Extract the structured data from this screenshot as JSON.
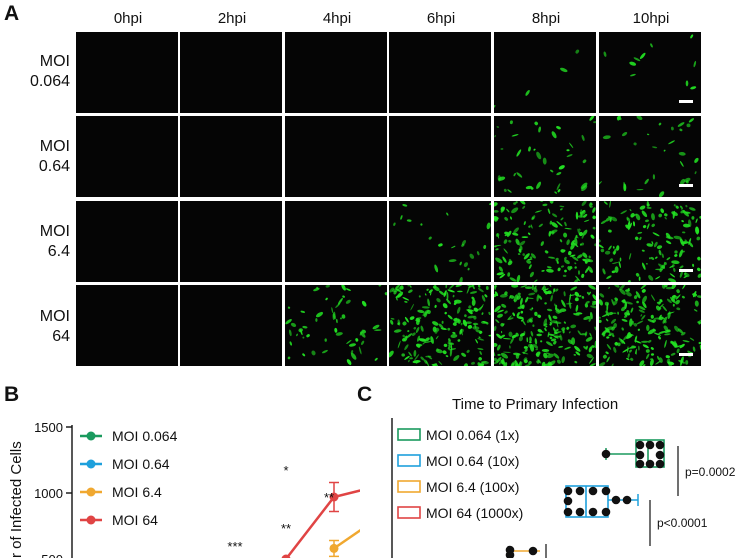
{
  "panelA": {
    "letter": "A",
    "columns": [
      "0hpi",
      "2hpi",
      "4hpi",
      "6hpi",
      "8hpi",
      "10hpi"
    ],
    "rows": [
      {
        "line1": "MOI",
        "line2": "0.064"
      },
      {
        "line1": "MOI",
        "line2": "0.64"
      },
      {
        "line1": "MOI",
        "line2": "6.4"
      },
      {
        "line1": "MOI",
        "line2": "64"
      }
    ],
    "fluorescence_color": "#22e022",
    "background_color": "#050505"
  },
  "panelB": {
    "letter": "B",
    "ylabel_visible": "r of Infected Cells",
    "yticks": [
      "1500",
      "1000",
      "500"
    ],
    "legend": [
      "MOI 0.064",
      "MOI 0.64",
      "MOI 6.4",
      "MOI 64"
    ],
    "colors": {
      "moi0064": "#1a9a5e",
      "moi064": "#1ea0dc",
      "moi64b": "#f0a830",
      "moi64": "#e04444"
    },
    "annotations": [
      "*",
      "**",
      "**",
      "***"
    ]
  },
  "panelC": {
    "letter": "C",
    "title": "Time to Primary Infection",
    "legend": [
      "MOI 0.064 (1x)",
      "MOI 0.64 (10x)",
      "MOI 6.4 (100x)",
      "MOI 64 (1000x)"
    ],
    "colors": [
      "#1a9a5e",
      "#1ea0dc",
      "#f0a830",
      "#e04444"
    ],
    "pvalues": [
      "p=0.0002",
      "p<0.0001"
    ]
  },
  "chart_data": {
    "type": "line",
    "x": [
      4,
      6,
      8,
      10
    ],
    "ylabel": "r of Infected Cells",
    "ylim": [
      0,
      1500
    ],
    "series": [
      {
        "name": "MOI 64",
        "values": [
          null,
          500,
          970,
          1060
        ]
      },
      {
        "name": "MOI 6.4",
        "values": [
          null,
          null,
          580,
          830
        ]
      }
    ]
  }
}
